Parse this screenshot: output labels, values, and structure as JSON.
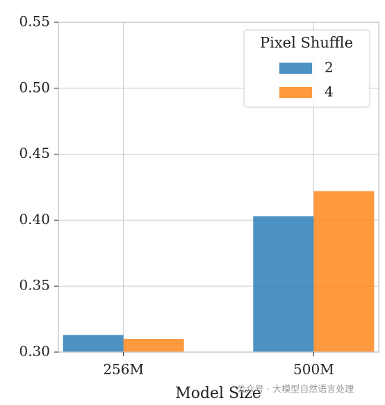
{
  "chart_data": {
    "type": "bar",
    "x_label": "Model Size",
    "categories": [
      "256M",
      "500M"
    ],
    "series": [
      {
        "name": "2",
        "color": "#1f77b4",
        "values": [
          0.313,
          0.403
        ]
      },
      {
        "name": "4",
        "color": "#ff7f0e",
        "values": [
          0.31,
          0.422
        ]
      }
    ],
    "ylim": [
      0.3,
      0.55
    ],
    "yticks": [
      {
        "value": 0.3,
        "label": "0.30"
      },
      0.35,
      {
        "value": 0.4,
        "label": "0.40"
      },
      0.45,
      {
        "value": 0.5,
        "label": "0.50"
      },
      0.55
    ],
    "grid": true,
    "legend_title": "Pixel Shuffle",
    "legend_position": "upper right",
    "watermark": "公众号 · 大模型自然语言处理"
  }
}
